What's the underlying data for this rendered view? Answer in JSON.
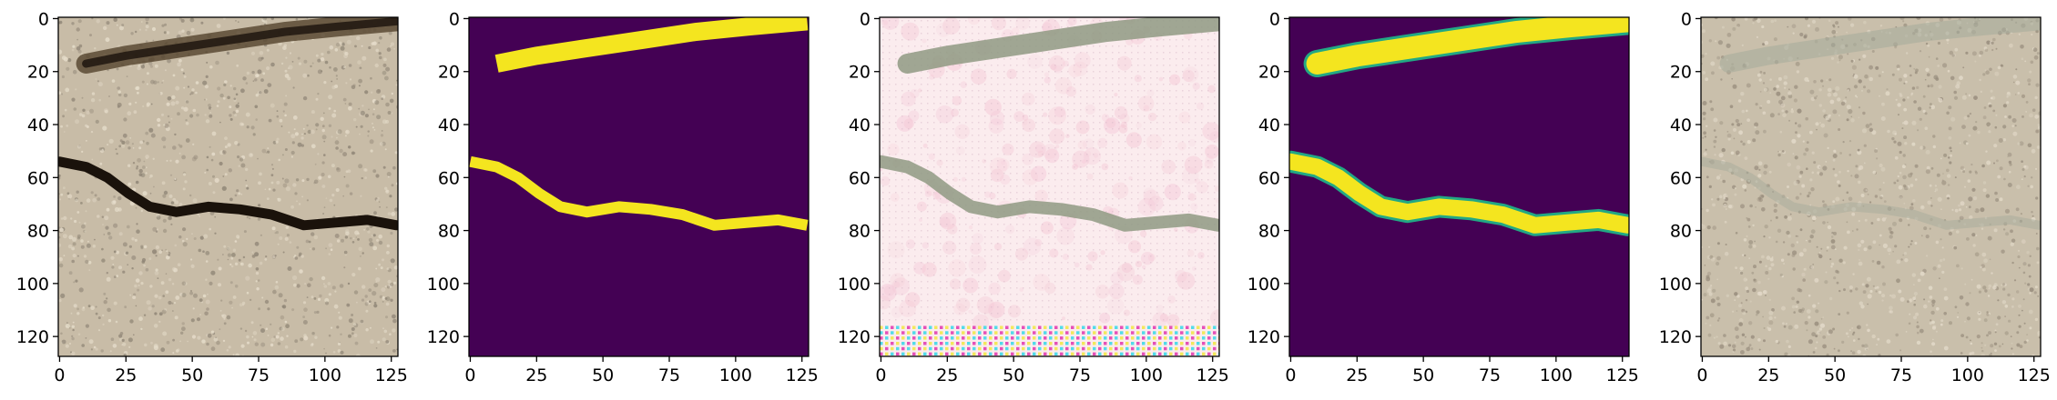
{
  "figure": {
    "panels": [
      {
        "name": "cracked-pavement-photo",
        "kind": "photo",
        "colors": {
          "base": "#c8bca7",
          "speckle_dark": "#8f8576",
          "speckle_light": "#e6ddcb",
          "crack": "#1a120b",
          "shadow": "#5a4a34"
        }
      },
      {
        "name": "ground-truth-mask",
        "kind": "mask",
        "colors": {
          "background": "#440154",
          "crack": "#f4e51f",
          "edge": "#2fb47c"
        }
      },
      {
        "name": "reconstruction-artifact",
        "kind": "artifact",
        "colors": {
          "base": "#fbecee",
          "tint": "#f4c8d6",
          "crack": "#8f9a82",
          "stripe_cyan": "#3fd9e8",
          "stripe_magenta": "#e23fb1",
          "stripe_yellow": "#f1e84a"
        }
      },
      {
        "name": "predicted-mask",
        "kind": "mask-soft",
        "colors": {
          "background": "#440154",
          "crack": "#f4e51f",
          "edge": "#22a884"
        }
      },
      {
        "name": "overlay-photo",
        "kind": "overlay",
        "colors": {
          "base": "#c9bfab",
          "speckle_dark": "#978c7c",
          "speckle_light": "#e3dac9",
          "crack": "#a9ad9d"
        }
      }
    ],
    "axes": {
      "x_ticks": [
        "0",
        "25",
        "50",
        "75",
        "100",
        "125"
      ],
      "y_ticks": [
        "0",
        "20",
        "40",
        "60",
        "80",
        "100",
        "120"
      ],
      "x_range": [
        -0.5,
        127.5
      ],
      "y_range": [
        -0.5,
        127.5
      ]
    },
    "cracks": {
      "upper": [
        [
          10,
          17
        ],
        [
          25,
          14
        ],
        [
          45,
          11
        ],
        [
          65,
          8
        ],
        [
          85,
          5
        ],
        [
          105,
          3
        ],
        [
          127,
          1
        ]
      ],
      "lower": [
        [
          0,
          54
        ],
        [
          10,
          56
        ],
        [
          18,
          60
        ],
        [
          26,
          66
        ],
        [
          34,
          71
        ],
        [
          44,
          73
        ],
        [
          56,
          71
        ],
        [
          68,
          72
        ],
        [
          80,
          74
        ],
        [
          92,
          78
        ],
        [
          104,
          77
        ],
        [
          116,
          76
        ],
        [
          127,
          78
        ]
      ]
    }
  }
}
